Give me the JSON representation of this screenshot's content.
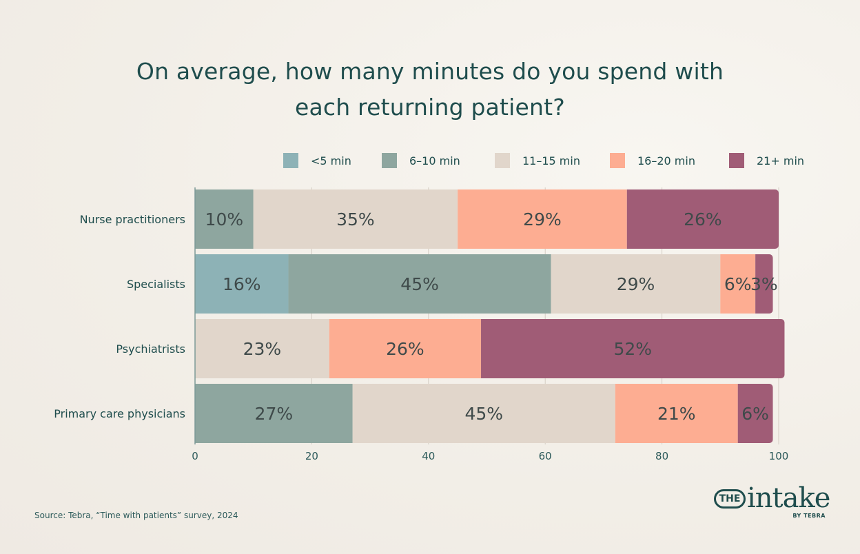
{
  "title_lines": [
    "On average, how many minutes do you spend with",
    "each returning patient?"
  ],
  "source": "Source: Tebra, “Time with patients” survey, 2024",
  "logo": {
    "the": "THE",
    "word": "intake",
    "by": "BY TEBRA"
  },
  "chart_data": {
    "type": "bar",
    "orientation": "horizontal",
    "stacked": true,
    "title": "On average, how many minutes do you spend with each returning patient?",
    "categories": [
      "Nurse practitioners",
      "Specialists",
      "Psychiatrists",
      "Primary care physicians"
    ],
    "series": [
      {
        "name": "<5 min",
        "color": "#8db2b6",
        "values": [
          0,
          16,
          0,
          0
        ],
        "labels": [
          "",
          "16%",
          "",
          ""
        ]
      },
      {
        "name": "6–10 min",
        "color": "#8ea69f",
        "values": [
          10,
          45,
          0,
          27
        ],
        "labels": [
          "10%",
          "45%",
          "",
          "27%"
        ]
      },
      {
        "name": "11–15 min",
        "color": "#e1d6cb",
        "values": [
          35,
          29,
          23,
          45
        ],
        "labels": [
          "35%",
          "29%",
          "23%",
          "45%"
        ]
      },
      {
        "name": "16–20 min",
        "color": "#fdad92",
        "values": [
          29,
          6,
          26,
          21
        ],
        "labels": [
          "29%",
          "6%",
          "26%",
          "21%"
        ]
      },
      {
        "name": "21+ min",
        "color": "#a05c76",
        "values": [
          26,
          3,
          52,
          6
        ],
        "labels": [
          "26%",
          "3%",
          "52%",
          "6%"
        ]
      }
    ],
    "x_ticks": [
      "0",
      "20",
      "40",
      "60",
      "80",
      "100"
    ],
    "xlim": [
      0,
      100
    ],
    "grid": true,
    "legend_position": "top-right"
  }
}
